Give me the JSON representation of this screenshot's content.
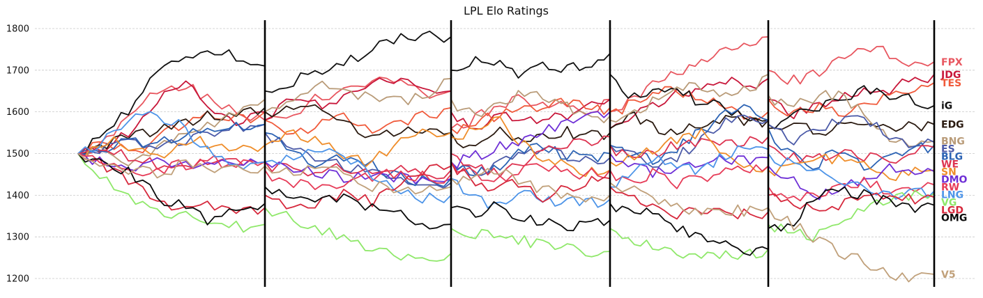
{
  "chart_data": {
    "type": "line",
    "title": "LPL Elo Ratings",
    "xlabel": "",
    "ylabel": "",
    "ylim": [
      1180,
      1820
    ],
    "y_ticks": [
      1200,
      1300,
      1400,
      1500,
      1600,
      1700,
      1800
    ],
    "grid": "horizontal dashed",
    "segments": 5,
    "steps_per_segment": 26,
    "series": [
      {
        "name": "FPX",
        "color": "#e8565f",
        "final": 1720,
        "segments": [
          [
            1500,
            1540,
            1600,
            1660,
            1675,
            1630,
            1600,
            1580
          ],
          [
            1580,
            1600,
            1640,
            1660,
            1680,
            1690,
            1650,
            1650
          ],
          [
            1560,
            1590,
            1620,
            1640,
            1630,
            1620,
            1610,
            1630
          ],
          [
            1600,
            1640,
            1680,
            1700,
            1730,
            1760,
            1770,
            1780
          ],
          [
            1700,
            1680,
            1700,
            1740,
            1760,
            1750,
            1720,
            1720
          ]
        ]
      },
      {
        "name": "JDG",
        "color": "#c8173a",
        "final": 1690,
        "segments": [
          [
            1500,
            1520,
            1560,
            1640,
            1675,
            1620,
            1580,
            1600
          ],
          [
            1580,
            1640,
            1620,
            1650,
            1670,
            1690,
            1660,
            1650
          ],
          [
            1600,
            1560,
            1600,
            1580,
            1590,
            1600,
            1620,
            1630
          ],
          [
            1560,
            1600,
            1620,
            1650,
            1660,
            1690,
            1670,
            1680
          ],
          [
            1630,
            1600,
            1620,
            1640,
            1650,
            1660,
            1680,
            1690
          ]
        ]
      },
      {
        "name": "TES",
        "color": "#f05a3b",
        "final": 1670,
        "segments": [
          [
            1500,
            1540,
            1500,
            1550,
            1580,
            1600,
            1590,
            1600
          ],
          [
            1580,
            1550,
            1580,
            1600,
            1560,
            1580,
            1600,
            1610
          ],
          [
            1560,
            1580,
            1600,
            1620,
            1610,
            1630,
            1620,
            1610
          ],
          [
            1600,
            1630,
            1650,
            1660,
            1640,
            1620,
            1600,
            1600
          ],
          [
            1630,
            1600,
            1620,
            1600,
            1620,
            1640,
            1660,
            1670
          ]
        ]
      },
      {
        "name": "iG",
        "color": "#111111",
        "final": 1615,
        "segments": [
          [
            1500,
            1560,
            1620,
            1700,
            1740,
            1750,
            1740,
            1710
          ],
          [
            1650,
            1680,
            1700,
            1720,
            1760,
            1780,
            1790,
            1780
          ],
          [
            1700,
            1730,
            1720,
            1700,
            1720,
            1710,
            1720,
            1740
          ],
          [
            1690,
            1640,
            1650,
            1660,
            1630,
            1620,
            1600,
            1580
          ],
          [
            1570,
            1600,
            1620,
            1640,
            1660,
            1650,
            1640,
            1615
          ]
        ]
      },
      {
        "name": "EDG",
        "color": "#2a1a10",
        "final": 1570,
        "segments": [
          [
            1500,
            1530,
            1560,
            1560,
            1580,
            1600,
            1600,
            1610
          ],
          [
            1600,
            1620,
            1620,
            1580,
            1540,
            1560,
            1570,
            1550
          ],
          [
            1550,
            1520,
            1560,
            1540,
            1550,
            1560,
            1550,
            1550
          ],
          [
            1560,
            1600,
            1570,
            1560,
            1580,
            1590,
            1580,
            1580
          ],
          [
            1560,
            1580,
            1560,
            1570,
            1580,
            1570,
            1570,
            1570
          ]
        ]
      },
      {
        "name": "BNG",
        "color": "#b99b78",
        "final": 1530,
        "segments": [
          [
            1500,
            1520,
            1480,
            1520,
            1560,
            1580,
            1610,
            1630
          ],
          [
            1600,
            1640,
            1680,
            1660,
            1640,
            1630,
            1650,
            1680
          ],
          [
            1630,
            1600,
            1620,
            1650,
            1640,
            1620,
            1600,
            1590
          ],
          [
            1580,
            1600,
            1640,
            1660,
            1670,
            1650,
            1660,
            1690
          ],
          [
            1640,
            1620,
            1640,
            1650,
            1600,
            1550,
            1530,
            1530
          ]
        ]
      },
      {
        "name": "ES",
        "color": "#4b5aa8",
        "final": 1527,
        "segments": [
          [
            1500,
            1520,
            1540,
            1520,
            1540,
            1560,
            1570,
            1570
          ],
          [
            1550,
            1520,
            1500,
            1480,
            1460,
            1440,
            1430,
            1430
          ],
          [
            1480,
            1460,
            1480,
            1500,
            1520,
            1500,
            1490,
            1490
          ],
          [
            1520,
            1500,
            1480,
            1500,
            1540,
            1580,
            1600,
            1580
          ],
          [
            1570,
            1540,
            1560,
            1590,
            1600,
            1550,
            1530,
            1527
          ]
        ]
      },
      {
        "name": "BLG",
        "color": "#2c63b4",
        "final": 1520,
        "segments": [
          [
            1500,
            1520,
            1540,
            1530,
            1550,
            1560,
            1570,
            1570
          ],
          [
            1550,
            1520,
            1480,
            1500,
            1480,
            1450,
            1440,
            1440
          ],
          [
            1480,
            1460,
            1470,
            1510,
            1530,
            1500,
            1500,
            1500
          ],
          [
            1520,
            1500,
            1490,
            1520,
            1560,
            1600,
            1620,
            1580
          ],
          [
            1560,
            1500,
            1480,
            1520,
            1470,
            1500,
            1520,
            1520
          ]
        ]
      },
      {
        "name": "WE",
        "color": "#dd3350",
        "final": 1515,
        "segments": [
          [
            1500,
            1520,
            1500,
            1480,
            1470,
            1490,
            1480,
            1480
          ],
          [
            1480,
            1470,
            1460,
            1480,
            1450,
            1470,
            1460,
            1460
          ],
          [
            1500,
            1480,
            1460,
            1480,
            1510,
            1530,
            1540,
            1540
          ],
          [
            1520,
            1500,
            1510,
            1530,
            1540,
            1530,
            1540,
            1540
          ],
          [
            1520,
            1500,
            1490,
            1520,
            1500,
            1490,
            1510,
            1515
          ]
        ]
      },
      {
        "name": "SN",
        "color": "#ef8d2a",
        "final": 1460,
        "segments": [
          [
            1500,
            1540,
            1520,
            1500,
            1540,
            1530,
            1520,
            1520
          ],
          [
            1520,
            1560,
            1540,
            1500,
            1480,
            1540,
            1560,
            1550
          ],
          [
            1540,
            1560,
            1600,
            1540,
            1500,
            1480,
            1460,
            1460
          ],
          [
            1480,
            1500,
            1520,
            1540,
            1560,
            1500,
            1480,
            1470
          ],
          [
            1460,
            1480,
            1500,
            1490,
            1480,
            1450,
            1460,
            1460
          ]
        ]
      },
      {
        "name": "DMO",
        "color": "#6e2fd6",
        "final": 1457,
        "segments": [
          [
            1500,
            1490,
            1470,
            1490,
            1480,
            1490,
            1480,
            1480
          ],
          [
            1480,
            1470,
            1460,
            1450,
            1460,
            1450,
            1440,
            1440
          ],
          [
            1480,
            1500,
            1520,
            1540,
            1560,
            1580,
            1600,
            1600
          ],
          [
            1500,
            1480,
            1460,
            1470,
            1480,
            1490,
            1490,
            1490
          ],
          [
            1470,
            1440,
            1400,
            1420,
            1440,
            1470,
            1460,
            1457
          ]
        ]
      },
      {
        "name": "RW",
        "color": "#e63b57",
        "final": 1425,
        "segments": [
          [
            1500,
            1490,
            1460,
            1470,
            1480,
            1490,
            1480,
            1480
          ],
          [
            1460,
            1440,
            1420,
            1440,
            1450,
            1460,
            1450,
            1450
          ],
          [
            1480,
            1460,
            1440,
            1460,
            1480,
            1460,
            1460,
            1460
          ],
          [
            1460,
            1440,
            1460,
            1430,
            1450,
            1460,
            1470,
            1470
          ],
          [
            1420,
            1400,
            1410,
            1430,
            1440,
            1420,
            1425,
            1425
          ]
        ]
      },
      {
        "name": "LNG",
        "color": "#4d94e8",
        "final": 1410,
        "segments": [
          [
            1500,
            1540,
            1590,
            1600,
            1570,
            1500,
            1480,
            1480
          ],
          [
            1480,
            1500,
            1520,
            1500,
            1460,
            1420,
            1400,
            1400
          ],
          [
            1440,
            1400,
            1380,
            1420,
            1400,
            1390,
            1390,
            1390
          ],
          [
            1420,
            1460,
            1500,
            1480,
            1460,
            1500,
            1520,
            1510
          ],
          [
            1500,
            1480,
            1470,
            1440,
            1420,
            1410,
            1410,
            1410
          ]
        ]
      },
      {
        "name": "VG",
        "color": "#8fe86a",
        "final": 1405,
        "segments": [
          [
            1500,
            1440,
            1400,
            1360,
            1360,
            1340,
            1330,
            1330
          ],
          [
            1370,
            1350,
            1330,
            1300,
            1280,
            1260,
            1250,
            1260
          ],
          [
            1320,
            1310,
            1320,
            1300,
            1290,
            1280,
            1270,
            1265
          ],
          [
            1320,
            1300,
            1280,
            1270,
            1260,
            1260,
            1270,
            1270
          ],
          [
            1330,
            1320,
            1310,
            1340,
            1380,
            1400,
            1405,
            1405
          ]
        ]
      },
      {
        "name": "LGD",
        "color": "#d6283c",
        "final": 1395,
        "segments": [
          [
            1500,
            1480,
            1440,
            1390,
            1380,
            1380,
            1370,
            1370
          ],
          [
            1400,
            1380,
            1390,
            1410,
            1390,
            1440,
            1470,
            1470
          ],
          [
            1480,
            1440,
            1420,
            1440,
            1400,
            1420,
            1440,
            1440
          ],
          [
            1420,
            1400,
            1380,
            1360,
            1370,
            1370,
            1360,
            1360
          ],
          [
            1400,
            1390,
            1370,
            1380,
            1400,
            1410,
            1395,
            1395
          ]
        ]
      },
      {
        "name": "OMG",
        "color": "#0a0a0a",
        "final": 1376,
        "segments": [
          [
            1500,
            1480,
            1460,
            1400,
            1380,
            1340,
            1380,
            1380
          ],
          [
            1420,
            1400,
            1390,
            1400,
            1380,
            1370,
            1330,
            1330
          ],
          [
            1370,
            1360,
            1380,
            1350,
            1340,
            1330,
            1340,
            1340
          ],
          [
            1380,
            1370,
            1360,
            1330,
            1310,
            1290,
            1270,
            1270
          ],
          [
            1320,
            1340,
            1400,
            1420,
            1410,
            1390,
            1380,
            1376
          ]
        ]
      },
      {
        "name": "V5",
        "color": "#c0a07a",
        "final": 1210,
        "segments": [
          [
            1500,
            1480,
            1470,
            1460,
            1480,
            1470,
            1470,
            1470
          ],
          [
            1470,
            1460,
            1470,
            1460,
            1430,
            1420,
            1420,
            1420
          ],
          [
            1440,
            1460,
            1470,
            1440,
            1420,
            1410,
            1400,
            1400
          ],
          [
            1430,
            1420,
            1400,
            1380,
            1370,
            1370,
            1370,
            1370
          ],
          [
            1370,
            1340,
            1300,
            1270,
            1250,
            1220,
            1210,
            1210
          ]
        ]
      }
    ]
  }
}
